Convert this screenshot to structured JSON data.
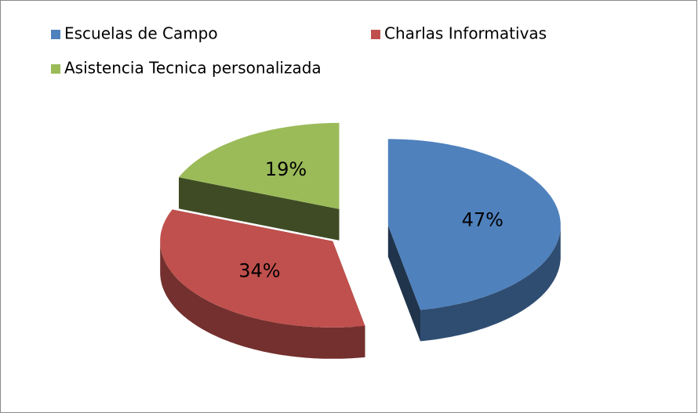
{
  "chart_data": {
    "type": "pie",
    "categories": [
      "Escuelas de Campo",
      "Charlas Informativas",
      "Asistencia Tecnica personalizada"
    ],
    "values": [
      47,
      34,
      19
    ],
    "value_labels": [
      "47%",
      "34%",
      "19%"
    ],
    "colors": [
      "#4f81bd",
      "#c0504d",
      "#9bbb59"
    ],
    "legend": "top"
  }
}
